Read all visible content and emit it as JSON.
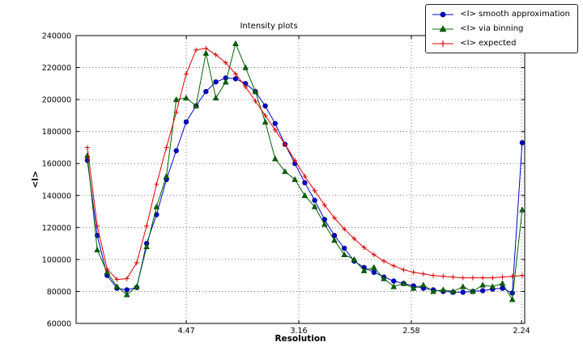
{
  "chart_data": {
    "type": "line",
    "title": "Intensity plots",
    "xlabel": "Resolution",
    "ylabel": "<I>",
    "grid": true,
    "legend_position": "upper right, outside axes",
    "x_axis": {
      "scale": "1/d^2 (resolution decreases to the right)",
      "min": 0.001,
      "max": 0.2007,
      "tick_positions": [
        0.05005,
        0.10014,
        0.15023,
        0.19929
      ],
      "tick_labels": [
        "4.47",
        "3.16",
        "2.58",
        "2.24"
      ]
    },
    "y_axis": {
      "min": 60000,
      "max": 240000,
      "ticks": [
        60000,
        80000,
        100000,
        120000,
        140000,
        160000,
        180000,
        200000,
        220000,
        240000
      ]
    },
    "x": [
      0.006,
      0.0104,
      0.0148,
      0.0192,
      0.0236,
      0.028,
      0.0324,
      0.0368,
      0.0412,
      0.0456,
      0.05,
      0.0544,
      0.0588,
      0.0632,
      0.0676,
      0.072,
      0.0764,
      0.0808,
      0.0852,
      0.0896,
      0.094,
      0.0984,
      0.1028,
      0.1072,
      0.1116,
      0.116,
      0.1204,
      0.1248,
      0.1292,
      0.1336,
      0.138,
      0.1424,
      0.1468,
      0.1512,
      0.1556,
      0.16,
      0.1644,
      0.1688,
      0.1732,
      0.1776,
      0.182,
      0.1864,
      0.1908,
      0.1952,
      0.1996
    ],
    "series": [
      {
        "name": "<I> smooth approximation",
        "marker": "circle",
        "color": "#0000cc",
        "edge": "#000080",
        "values": [
          162000,
          115000,
          90000,
          82000,
          81000,
          82500,
          110000,
          128000,
          150000,
          168000,
          186000,
          196000,
          205000,
          211000,
          213500,
          213000,
          210000,
          205000,
          196000,
          185000,
          172000,
          160000,
          148000,
          137000,
          125000,
          115000,
          107000,
          99000,
          95000,
          92000,
          89000,
          86500,
          85000,
          83500,
          82000,
          81000,
          80000,
          79500,
          79500,
          80000,
          80500,
          81500,
          82000,
          79000,
          173000
        ]
      },
      {
        "name": "<I> via binning",
        "marker": "triangle",
        "color": "#006400",
        "edge": "#003300",
        "values": [
          165000,
          106000,
          92000,
          83000,
          78000,
          83000,
          108000,
          133000,
          152000,
          200000,
          201000,
          196000,
          229000,
          201000,
          211000,
          235000,
          220000,
          205000,
          186000,
          163000,
          155000,
          150000,
          140000,
          133000,
          122000,
          112000,
          103000,
          100000,
          93000,
          95000,
          88000,
          83000,
          85000,
          82000,
          84000,
          80000,
          81000,
          80000,
          83000,
          80000,
          84000,
          83000,
          85000,
          75000,
          131000
        ]
      },
      {
        "name": "<I> expected",
        "marker": "plus",
        "color": "#dd0000",
        "edge": "#dd0000",
        "values": [
          170000,
          121000,
          94000,
          87500,
          88000,
          98000,
          121000,
          147000,
          170000,
          192000,
          216000,
          231000,
          232000,
          228000,
          223000,
          216000,
          208000,
          199000,
          190000,
          181000,
          172000,
          162000,
          152000,
          143000,
          134000,
          126000,
          119000,
          113000,
          107500,
          103000,
          99000,
          96000,
          93500,
          92000,
          91000,
          90000,
          89500,
          89000,
          88500,
          88500,
          88500,
          88500,
          89000,
          89500,
          90000
        ]
      }
    ]
  }
}
